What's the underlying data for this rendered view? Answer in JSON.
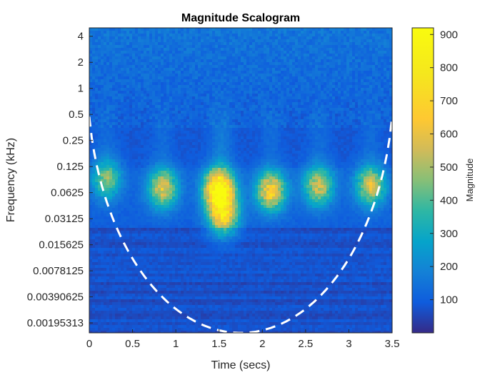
{
  "chart_data": {
    "type": "heatmap",
    "title": "Magnitude Scalogram",
    "xlabel": "Time (secs)",
    "ylabel": "Frequency (kHz)",
    "xlim": [
      0,
      3.5
    ],
    "x_ticks": [
      0,
      0.5,
      1,
      1.5,
      2,
      2.5,
      3,
      3.5
    ],
    "x_tick_labels": [
      "0",
      "0.5",
      "1",
      "1.5",
      "2",
      "2.5",
      "3",
      "3.5"
    ],
    "y_scale": "log2",
    "ylim": [
      0.0015,
      5
    ],
    "y_ticks": [
      4,
      2,
      1,
      0.5,
      0.25,
      0.125,
      0.0625,
      0.03125,
      0.015625,
      0.0078125,
      0.00390625,
      0.00195313
    ],
    "y_tick_labels": [
      "4",
      "2",
      "1",
      "0.5",
      "0.25",
      "0.125",
      "0.0625",
      "0.03125",
      "0.015625",
      "0.0078125",
      "0.00390625",
      "0.00195313"
    ],
    "colorbar": {
      "label": "Magnitude",
      "range": [
        0,
        920
      ],
      "ticks": [
        100,
        200,
        300,
        400,
        500,
        600,
        700,
        800,
        900
      ],
      "tick_labels": [
        "100",
        "200",
        "300",
        "400",
        "500",
        "600",
        "700",
        "800",
        "900"
      ],
      "colormap": "parula"
    },
    "energy_bursts": [
      {
        "time": 0.2,
        "freq": 0.09,
        "magnitude": 380
      },
      {
        "time": 0.85,
        "freq": 0.07,
        "magnitude": 520
      },
      {
        "time": 1.5,
        "freq": 0.07,
        "magnitude": 900
      },
      {
        "time": 1.55,
        "freq": 0.035,
        "magnitude": 650
      },
      {
        "time": 2.1,
        "freq": 0.065,
        "magnitude": 620
      },
      {
        "time": 2.65,
        "freq": 0.075,
        "magnitude": 480
      },
      {
        "time": 3.25,
        "freq": 0.075,
        "magnitude": 500
      }
    ],
    "cone_of_influence": {
      "style": "dashed",
      "color": "#ffffff",
      "min_freq_at": 1.75
    }
  }
}
